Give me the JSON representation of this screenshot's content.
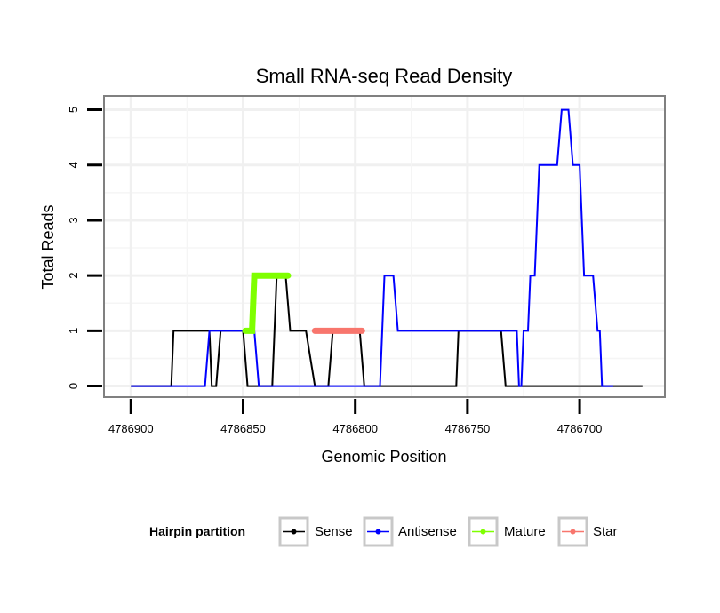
{
  "chart_data": {
    "type": "line",
    "title": "Small RNA-seq Read Density",
    "xlabel": "Genomic Position",
    "ylabel": "Total Reads",
    "x_reversed": true,
    "xlim": [
      4786912,
      4786662
    ],
    "ylim": [
      -0.2,
      5.25
    ],
    "xticks": [
      4786900,
      4786850,
      4786800,
      4786750,
      4786700
    ],
    "xtick_labels": [
      "4786900",
      "4786850",
      "4786800",
      "4786750",
      "4786700"
    ],
    "yticks": [
      0,
      1,
      2,
      3,
      4,
      5
    ],
    "ytick_labels": [
      "0",
      "1",
      "2",
      "3",
      "4",
      "5"
    ],
    "grid": true,
    "legend": {
      "title": "Hairpin partition",
      "position": "bottom",
      "entries": [
        "Sense",
        "Antisense",
        "Mature",
        "Star"
      ]
    },
    "series": [
      {
        "name": "Sense",
        "color": "#000000",
        "x": [
          4786900,
          4786882,
          4786881,
          4786865,
          4786864,
          4786862,
          4786860,
          4786850,
          4786848,
          4786837,
          4786835,
          4786831,
          4786829,
          4786822,
          4786818,
          4786812,
          4786810,
          4786798,
          4786796,
          4786755,
          4786754,
          4786735,
          4786733,
          4786672
        ],
        "values": [
          0,
          0,
          1,
          1,
          0,
          0,
          1,
          1,
          0,
          0,
          2,
          2,
          1,
          1,
          0,
          0,
          1,
          1,
          0,
          0,
          1,
          1,
          0,
          0
        ]
      },
      {
        "name": "Antisense",
        "color": "#0000ff",
        "x": [
          4786900,
          4786867,
          4786865,
          4786845,
          4786843,
          4786810,
          4786808,
          4786789,
          4786787,
          4786783,
          4786781,
          4786728,
          4786727,
          4786726,
          4786725,
          4786723,
          4786722,
          4786720,
          4786718,
          4786710,
          4786708,
          4786705,
          4786703,
          4786700,
          4786698,
          4786694,
          4786692,
          4786691,
          4786690,
          4786690,
          4786689,
          4786685
        ],
        "values": [
          0,
          0,
          1,
          1,
          0,
          0,
          0,
          0,
          2,
          2,
          1,
          1,
          0,
          0,
          1,
          1,
          2,
          2,
          4,
          4,
          5,
          5,
          4,
          4,
          2,
          2,
          1,
          1,
          0,
          0,
          0,
          0
        ]
      },
      {
        "name": "Mature",
        "color": "#7fff00",
        "x": [
          4786849,
          4786846,
          4786845,
          4786832,
          4786830
        ],
        "values": [
          1,
          1,
          2,
          2,
          2
        ]
      },
      {
        "name": "Star",
        "color": "#f8766d",
        "x": [
          4786818,
          4786797
        ],
        "values": [
          1,
          1
        ]
      }
    ]
  }
}
